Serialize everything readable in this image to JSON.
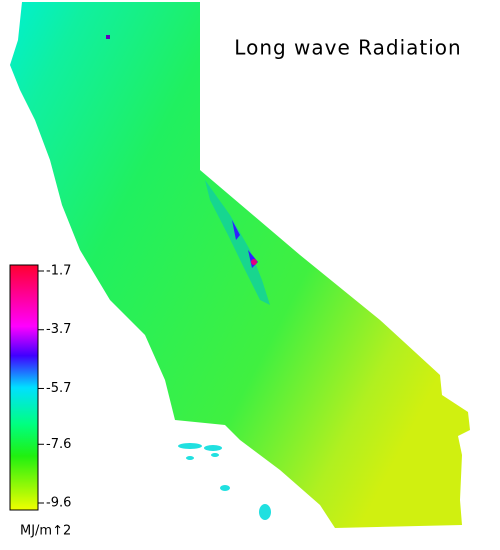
{
  "title": "Long wave Radiation",
  "legend": {
    "ticks": [
      -1.7,
      -3.7,
      -5.7,
      -7.6,
      -9.6
    ],
    "unit": "MJ/m↑2"
  }
}
